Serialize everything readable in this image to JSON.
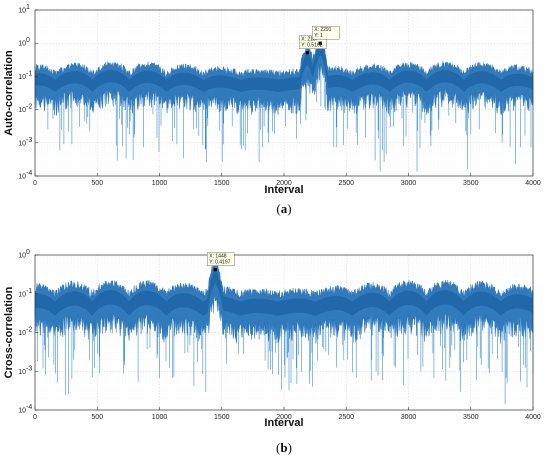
{
  "chart_data": [
    {
      "type": "line",
      "panel_label": "(a)",
      "xlabel": "Interval",
      "ylabel": "Auto-correlation",
      "xlim": [
        0,
        4000
      ],
      "ylim": [
        0.0001,
        10
      ],
      "yscale": "log",
      "grid": true,
      "series_color": "#1f6fb5",
      "x_ticks": [
        "0",
        "500",
        "1000",
        "1500",
        "2000",
        "2500",
        "3000",
        "3500",
        "4000"
      ],
      "y_ticks": [
        "10",
        "10",
        "10",
        "10",
        "10",
        "10"
      ],
      "y_tick_exponents": [
        "1",
        "0",
        "-1",
        "-2",
        "-3",
        "-4"
      ],
      "typical_level": 0.1,
      "peaks": [
        {
          "x": 2187,
          "y": 0.5162
        },
        {
          "x": 2291,
          "y": 1
        }
      ],
      "annotations": [
        {
          "x": 2187,
          "y": 0.5162,
          "label_x": "X: 2187",
          "label_y": "Y: 0.5162"
        },
        {
          "x": 2291,
          "y": 1,
          "label_x": "X: 2291",
          "label_y": "Y: 1"
        }
      ]
    },
    {
      "type": "line",
      "panel_label": "(b)",
      "xlabel": "Interval",
      "ylabel": "Cross-correlation",
      "xlim": [
        0,
        4000
      ],
      "ylim": [
        0.0001,
        1
      ],
      "yscale": "log",
      "grid": true,
      "series_color": "#1f6fb5",
      "x_ticks": [
        "0",
        "500",
        "1000",
        "1500",
        "2000",
        "2500",
        "3000",
        "3500",
        "4000"
      ],
      "y_ticks": [
        "10",
        "10",
        "10",
        "10",
        "10"
      ],
      "y_tick_exponents": [
        "0",
        "-1",
        "-2",
        "-3",
        "-4"
      ],
      "typical_level": 0.08,
      "peaks": [
        {
          "x": 1448,
          "y": 0.4197
        }
      ],
      "annotations": [
        {
          "x": 1448,
          "y": 0.4197,
          "label_x": "X: 1448",
          "label_y": "Y: 0.4197"
        }
      ]
    }
  ]
}
